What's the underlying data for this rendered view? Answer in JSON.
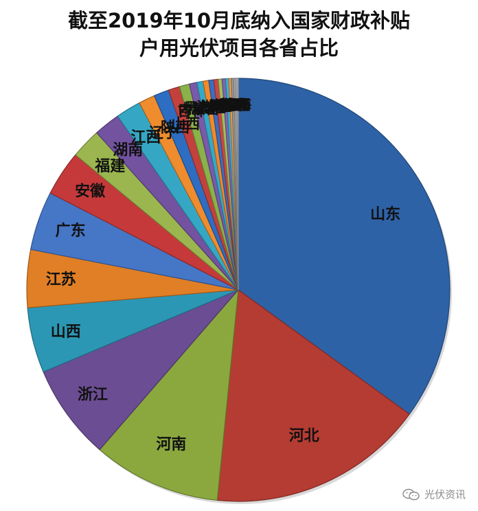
{
  "chart_data": {
    "type": "pie",
    "title_lines": [
      "截至2019年10月底纳入国家财政补贴",
      "户用光伏项目各省占比"
    ],
    "slices": [
      {
        "label": "山东",
        "value": 36.5,
        "color": "#2E62A6"
      },
      {
        "label": "河北",
        "value": 17.3,
        "color": "#B43C33"
      },
      {
        "label": "河南",
        "value": 10.2,
        "color": "#8BA83E"
      },
      {
        "label": "浙江",
        "value": 7.6,
        "color": "#6B4D93"
      },
      {
        "label": "山西",
        "value": 5.2,
        "color": "#2C97B5"
      },
      {
        "label": "江苏",
        "value": 4.6,
        "color": "#E17F26"
      },
      {
        "label": "广东",
        "value": 4.7,
        "color": "#4676C6"
      },
      {
        "label": "安徽",
        "value": 3.6,
        "color": "#C5393A"
      },
      {
        "label": "福建",
        "value": 2.4,
        "color": "#9BB64F"
      },
      {
        "label": "湖南",
        "value": 2.1,
        "color": "#7352A0"
      },
      {
        "label": "江西",
        "value": 2.0,
        "color": "#35A7C4"
      },
      {
        "label": "辽宁",
        "value": 1.3,
        "color": "#EE8C2E"
      },
      {
        "label": "陕西",
        "value": 1.2,
        "color": "#2D6DC2"
      },
      {
        "label": "山西",
        "value": 0.9,
        "color": "#C3413C"
      },
      {
        "label": "吉林",
        "value": 0.8,
        "color": "#8AB14A"
      },
      {
        "label": "内蒙古",
        "value": 0.6,
        "color": "#7B59AA"
      },
      {
        "label": "黑龙江",
        "value": 0.5,
        "color": "#34A9C8"
      },
      {
        "label": "海南",
        "value": 0.45,
        "color": "#F08A2A"
      },
      {
        "label": "湖北",
        "value": 0.4,
        "color": "#3A6EBF"
      },
      {
        "label": "上海",
        "value": 0.35,
        "color": "#C94646"
      },
      {
        "label": "天津",
        "value": 0.3,
        "color": "#A3C05A"
      },
      {
        "label": "北京",
        "value": 0.28,
        "color": "#8266B2"
      },
      {
        "label": "广西",
        "value": 0.25,
        "color": "#3FB1D0"
      },
      {
        "label": "宁夏",
        "value": 0.2,
        "color": "#F59A45"
      },
      {
        "label": "甘肃",
        "value": 0.18,
        "color": "#9B9B9B"
      },
      {
        "label": "重庆",
        "value": 0.15,
        "color": "#ABABAB"
      },
      {
        "label": "新疆",
        "value": 0.12,
        "color": "#BDBDBD"
      },
      {
        "label": "青海",
        "value": 0.1,
        "color": "#C8C8C8"
      }
    ],
    "legend": "none"
  },
  "watermark": {
    "text": "光伏资讯",
    "icon": "wechat-icon"
  }
}
